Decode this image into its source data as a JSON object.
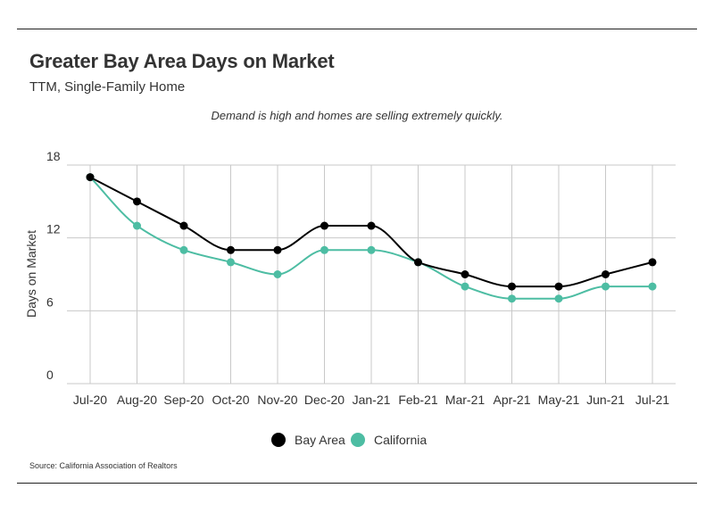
{
  "header": {
    "title": "Greater Bay Area Days on Market",
    "subtitle": "TTM, Single-Family Home",
    "annotation": "Demand is high and homes are selling extremely quickly."
  },
  "footer": {
    "source": "Source:  California Association of Realtors"
  },
  "chart_data": {
    "type": "line",
    "categories": [
      "Jul-20",
      "Aug-20",
      "Sep-20",
      "Oct-20",
      "Nov-20",
      "Dec-20",
      "Jan-21",
      "Feb-21",
      "Mar-21",
      "Apr-21",
      "May-21",
      "Jun-21",
      "Jul-21"
    ],
    "series": [
      {
        "name": "Bay Area",
        "color": "#000000",
        "values": [
          17,
          15,
          13,
          11,
          11,
          13,
          13,
          10,
          9,
          8,
          8,
          9,
          10
        ]
      },
      {
        "name": "California",
        "color": "#4dbda3",
        "values": [
          17,
          13,
          11,
          10,
          9,
          11,
          11,
          10,
          8,
          7,
          7,
          8,
          8
        ]
      }
    ],
    "ylabel": "Days on Market",
    "xlabel": "",
    "yticks": [
      0,
      6,
      12,
      18
    ],
    "ylim": [
      0,
      18
    ],
    "grid": true,
    "legend": "bottom-center"
  }
}
